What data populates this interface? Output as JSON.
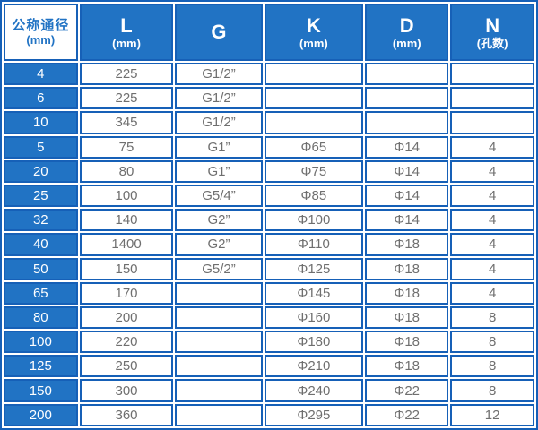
{
  "colors": {
    "header_blue": "#2173c4",
    "border_blue": "#1660b7",
    "cell_text_gray": "#6f6f6f",
    "header_text_white": "#ffffff"
  },
  "table": {
    "columns": [
      {
        "key": "dn",
        "label": "公称通径",
        "sub": "(mm)"
      },
      {
        "key": "l",
        "label": "L",
        "sub": "(mm)"
      },
      {
        "key": "g",
        "label": "G",
        "sub": ""
      },
      {
        "key": "k",
        "label": "K",
        "sub": "(mm)"
      },
      {
        "key": "d",
        "label": "D",
        "sub": "(mm)"
      },
      {
        "key": "n",
        "label": "N",
        "sub": "(孔数)"
      }
    ],
    "rows": [
      [
        "4",
        "225",
        "G1/2”",
        "",
        "",
        ""
      ],
      [
        "6",
        "225",
        "G1/2”",
        "",
        "",
        ""
      ],
      [
        "10",
        "345",
        "G1/2”",
        "",
        "",
        ""
      ],
      [
        "5",
        "75",
        "G1”",
        "Φ65",
        "Φ14",
        "4"
      ],
      [
        "20",
        "80",
        "G1”",
        "Φ75",
        "Φ14",
        "4"
      ],
      [
        "25",
        "100",
        "G5/4”",
        "Φ85",
        "Φ14",
        "4"
      ],
      [
        "32",
        "140",
        "G2”",
        "Φ100",
        "Φ14",
        "4"
      ],
      [
        "40",
        "1400",
        "G2”",
        "Φ110",
        "Φ18",
        "4"
      ],
      [
        "50",
        "150",
        "G5/2”",
        "Φ125",
        "Φ18",
        "4"
      ],
      [
        "65",
        "170",
        "",
        "Φ145",
        "Φ18",
        "4"
      ],
      [
        "80",
        "200",
        "",
        "Φ160",
        "Φ18",
        "8"
      ],
      [
        "100",
        "220",
        "",
        "Φ180",
        "Φ18",
        "8"
      ],
      [
        "125",
        "250",
        "",
        "Φ210",
        "Φ18",
        "8"
      ],
      [
        "150",
        "300",
        "",
        "Φ240",
        "Φ22",
        "8"
      ],
      [
        "200",
        "360",
        "",
        "Φ295",
        "Φ22",
        "12"
      ]
    ]
  },
  "chart_data": {
    "type": "table",
    "title": "",
    "columns": [
      "公称通径 (mm)",
      "L (mm)",
      "G",
      "K (mm)",
      "D (mm)",
      "N (孔数)"
    ],
    "rows": [
      [
        "4",
        "225",
        "G1/2”",
        null,
        null,
        null
      ],
      [
        "6",
        "225",
        "G1/2”",
        null,
        null,
        null
      ],
      [
        "10",
        "345",
        "G1/2”",
        null,
        null,
        null
      ],
      [
        "5",
        "75",
        "G1”",
        "Φ65",
        "Φ14",
        4
      ],
      [
        "20",
        "80",
        "G1”",
        "Φ75",
        "Φ14",
        4
      ],
      [
        "25",
        "100",
        "G5/4”",
        "Φ85",
        "Φ14",
        4
      ],
      [
        "32",
        "140",
        "G2”",
        "Φ100",
        "Φ14",
        4
      ],
      [
        "40",
        "1400",
        "G2”",
        "Φ110",
        "Φ18",
        4
      ],
      [
        "50",
        "150",
        "G5/2”",
        "Φ125",
        "Φ18",
        4
      ],
      [
        "65",
        "170",
        null,
        "Φ145",
        "Φ18",
        4
      ],
      [
        "80",
        "200",
        null,
        "Φ160",
        "Φ18",
        8
      ],
      [
        "100",
        "220",
        null,
        "Φ180",
        "Φ18",
        8
      ],
      [
        "125",
        "250",
        null,
        "Φ210",
        "Φ18",
        8
      ],
      [
        "150",
        "300",
        null,
        "Φ240",
        "Φ22",
        8
      ],
      [
        "200",
        "360",
        null,
        "Φ295",
        "Φ22",
        12
      ]
    ]
  }
}
